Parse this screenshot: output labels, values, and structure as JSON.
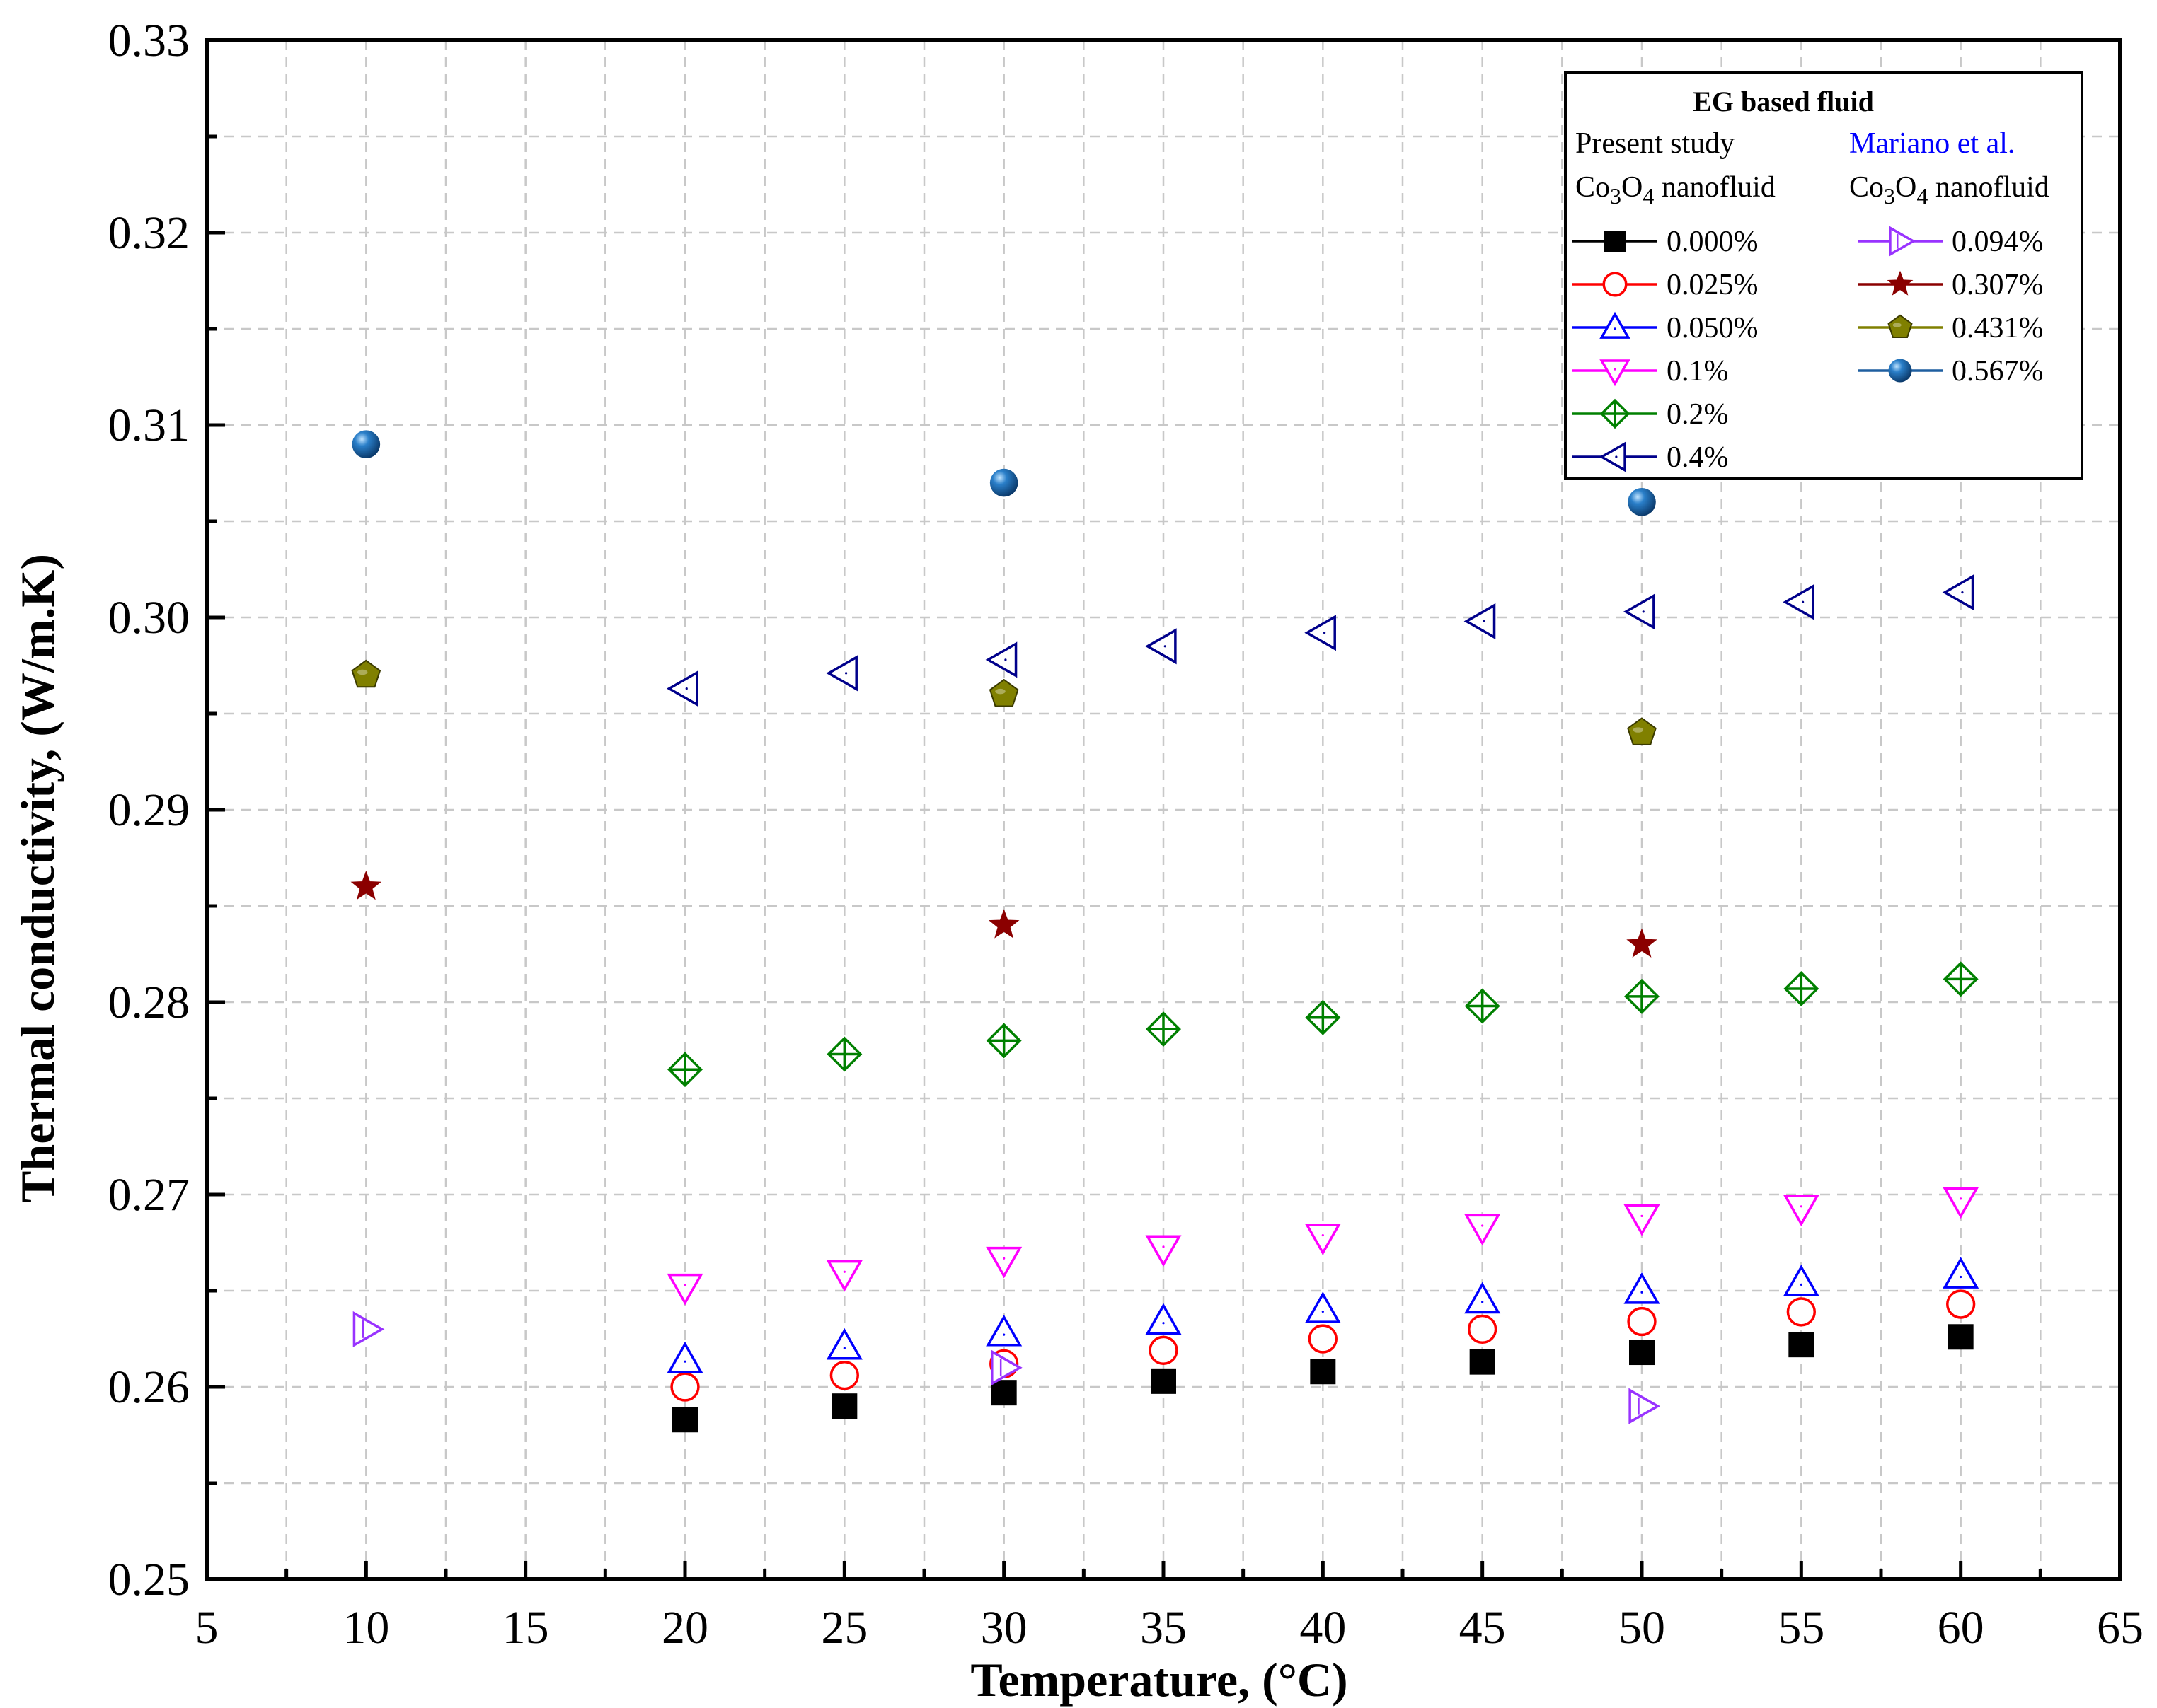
{
  "chart_data": {
    "type": "scatter",
    "xlabel": "Temperature, (°C)",
    "ylabel": "Thermal conductivity, (W/m.K)",
    "xlim": [
      5,
      65
    ],
    "ylim": [
      0.25,
      0.33
    ],
    "x_ticks": [
      5,
      10,
      15,
      20,
      25,
      30,
      35,
      40,
      45,
      50,
      55,
      60,
      65
    ],
    "y_ticks": [
      "0.25",
      "0.26",
      "0.27",
      "0.28",
      "0.29",
      "0.30",
      "0.31",
      "0.32",
      "0.33"
    ],
    "grid": true,
    "legend_position": "top-right",
    "legend": {
      "title": "EG based fluid",
      "left_header": "Present study",
      "right_header": "Mariano et al.",
      "left_sub_main": "Co",
      "left_sub_1": "3",
      "left_sub_mid": "O",
      "left_sub_2": "4",
      "left_sub_tail": " nanofluid",
      "right_sub_main": "Co",
      "right_sub_1": "3",
      "right_sub_mid": "O",
      "right_sub_2": "4",
      "right_sub_tail": " nanofluid"
    },
    "series": [
      {
        "name": "0.000%",
        "group": "present",
        "marker": "square-filled",
        "color": "#000000",
        "x": [
          20,
          25,
          30,
          35,
          40,
          45,
          50,
          55,
          60
        ],
        "y": [
          0.2583,
          0.259,
          0.2597,
          0.2603,
          0.2608,
          0.2613,
          0.2618,
          0.2622,
          0.2626
        ]
      },
      {
        "name": "0.025%",
        "group": "present",
        "marker": "circle-open",
        "color": "#ff0000",
        "x": [
          20,
          25,
          30,
          35,
          40,
          45,
          50,
          55,
          60
        ],
        "y": [
          0.26,
          0.2606,
          0.2612,
          0.2619,
          0.2625,
          0.263,
          0.2634,
          0.2639,
          0.2643
        ]
      },
      {
        "name": "0.050%",
        "group": "present",
        "marker": "triangle-up-open",
        "color": "#0000ff",
        "x": [
          20,
          25,
          30,
          35,
          40,
          45,
          50,
          55,
          60
        ],
        "y": [
          0.2614,
          0.2621,
          0.2628,
          0.2634,
          0.264,
          0.2645,
          0.265,
          0.2654,
          0.2658
        ]
      },
      {
        "name": "0.1%",
        "group": "present",
        "marker": "triangle-down-open",
        "color": "#ff00ff",
        "x": [
          20,
          25,
          30,
          35,
          40,
          45,
          50,
          55,
          60
        ],
        "y": [
          0.2652,
          0.2659,
          0.2666,
          0.2672,
          0.2678,
          0.2683,
          0.2688,
          0.2693,
          0.2697
        ]
      },
      {
        "name": "0.2%",
        "group": "present",
        "marker": "diamond-cross-open",
        "color": "#008000",
        "x": [
          20,
          25,
          30,
          35,
          40,
          45,
          50,
          55,
          60
        ],
        "y": [
          0.2765,
          0.2773,
          0.278,
          0.2786,
          0.2792,
          0.2798,
          0.2803,
          0.2807,
          0.2812
        ]
      },
      {
        "name": "0.4%",
        "group": "present",
        "marker": "triangle-left-open",
        "color": "#00008b",
        "x": [
          20,
          25,
          30,
          35,
          40,
          45,
          50,
          55,
          60
        ],
        "y": [
          0.2963,
          0.2971,
          0.2978,
          0.2985,
          0.2992,
          0.2998,
          0.3003,
          0.3008,
          0.3013
        ]
      },
      {
        "name": "0.094%",
        "group": "mariano",
        "marker": "triangle-right-open",
        "color": "#9933ff",
        "x": [
          10,
          30,
          50
        ],
        "y": [
          0.263,
          0.261,
          0.259
        ]
      },
      {
        "name": "0.307%",
        "group": "mariano",
        "marker": "star-filled",
        "color": "#8b0000",
        "x": [
          10,
          30,
          50
        ],
        "y": [
          0.286,
          0.284,
          0.283
        ]
      },
      {
        "name": "0.431%",
        "group": "mariano",
        "marker": "pentagon-filled",
        "color": "#808000",
        "x": [
          10,
          30,
          50
        ],
        "y": [
          0.297,
          0.296,
          0.294
        ]
      },
      {
        "name": "0.567%",
        "group": "mariano",
        "marker": "sphere-filled",
        "color": "#1f5fa0",
        "x": [
          10,
          30,
          50
        ],
        "y": [
          0.309,
          0.307,
          0.306
        ]
      }
    ]
  }
}
